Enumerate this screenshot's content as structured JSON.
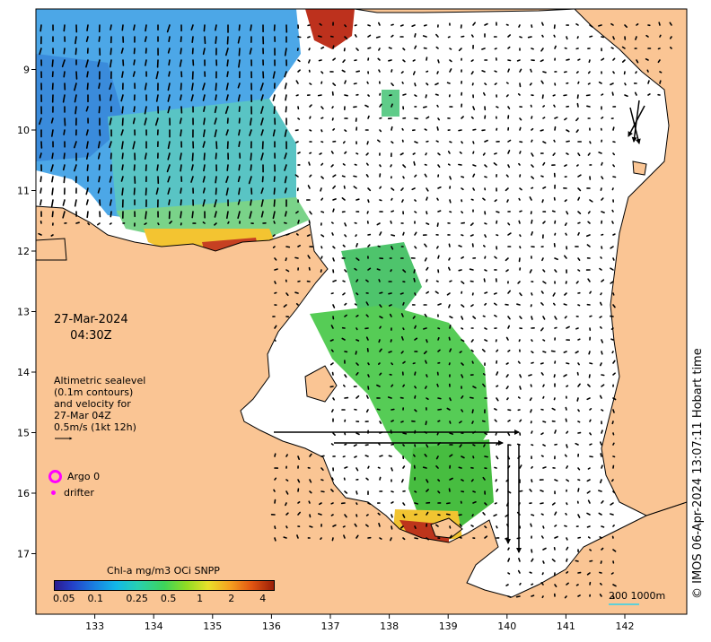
{
  "map": {
    "lon_ticks": [
      "133",
      "134",
      "135",
      "136",
      "137",
      "138",
      "139",
      "140",
      "141",
      "142"
    ],
    "lat_ticks": [
      "9",
      "10",
      "11",
      "12",
      "13",
      "14",
      "15",
      "16",
      "17"
    ],
    "lon_range": [
      132.0,
      143.0
    ],
    "lat_range_south": [
      8.1,
      17.6
    ]
  },
  "date": {
    "line1": "27-Mar-2024",
    "line2": "04:30Z"
  },
  "altimetry": {
    "line1": "Altimetric sealevel",
    "line2": "(0.1m contours)",
    "line3": "and velocity for",
    "line4": "27-Mar 04Z",
    "line5": "0.5m/s (1kt 12h)"
  },
  "legend": {
    "argo": "Argo 0",
    "drifter": "drifter"
  },
  "colorbar": {
    "title": "Chl-a mg/m3 OCi SNPP",
    "ticks": [
      "0.05",
      "0.1",
      "0.25",
      "0.5",
      "1",
      "2",
      "4"
    ],
    "range": [
      0.04,
      5.0
    ],
    "scale": "log"
  },
  "scale_bar": {
    "label": "200  1000m"
  },
  "timestamp": "© IMOS 06-Apr-2024 13:07:11 Hobart time",
  "colors": {
    "land": "#fac594",
    "water": "#ffffff",
    "argo": "#ff00ff",
    "scale": "#5ed0d8"
  }
}
